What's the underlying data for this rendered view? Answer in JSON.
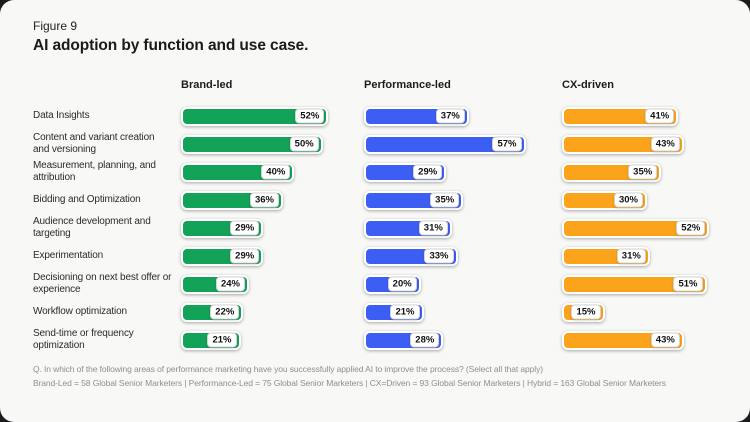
{
  "page": {
    "figure_label": "Figure 9",
    "title": "AI adoption by function and use case."
  },
  "chart_data": {
    "type": "bar",
    "orientation": "horizontal",
    "title": "AI adoption by function and use case.",
    "value_suffix": "%",
    "xlim": [
      0,
      60
    ],
    "grid": false,
    "legend_position": "column-headers",
    "categories": [
      "Data Insights",
      "Content and variant creation and versioning",
      "Measurement, planning, and attribution",
      "Bidding and Optimization",
      "Audience development and targeting",
      "Experimentation",
      "Decisioning on next best offer or experience",
      "Workflow optimization",
      "Send-time or frequency optimization"
    ],
    "series": [
      {
        "name": "Brand-led",
        "color": "#12A258",
        "values": [
          52,
          50,
          40,
          36,
          29,
          29,
          24,
          22,
          21
        ]
      },
      {
        "name": "Performance-led",
        "color": "#3D5EF2",
        "values": [
          37,
          57,
          29,
          35,
          31,
          33,
          20,
          21,
          28
        ]
      },
      {
        "name": "CX-driven",
        "color": "#FBA31A",
        "values": [
          41,
          43,
          35,
          30,
          52,
          31,
          51,
          15,
          43
        ]
      }
    ]
  },
  "footer": {
    "question": "Q. In which of the following areas of performance marketing have you successfully applied AI to improve the process? (Select all that apply)",
    "sample_note": "Brand-Led = 58 Global Senior Marketers | Performance-Led = 75 Global Senior Marketers | CX=Driven = 93 Global Senior Marketers | Hybrid = 163 Global Senior Marketers"
  }
}
